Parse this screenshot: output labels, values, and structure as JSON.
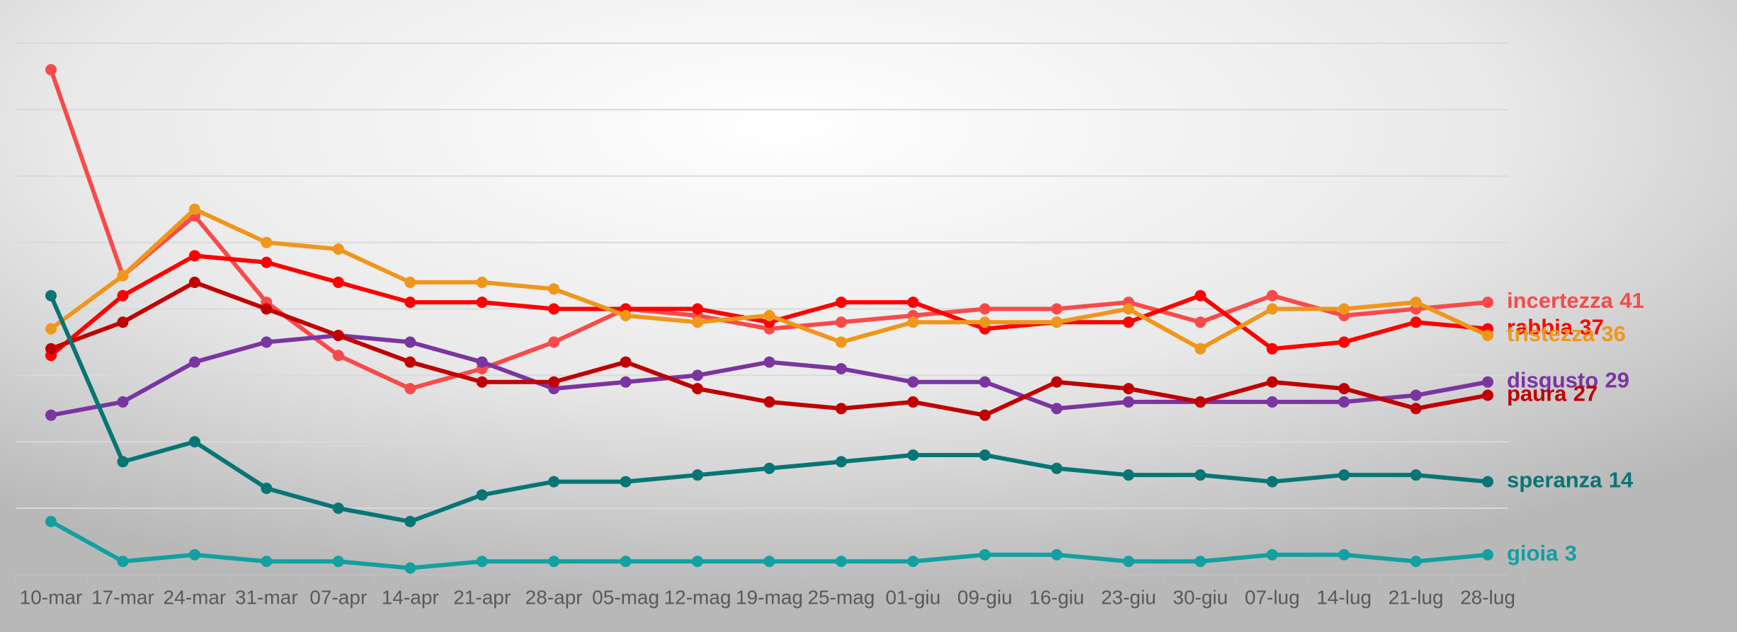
{
  "chart_data": {
    "type": "line",
    "categories": [
      "10-mar",
      "17-mar",
      "24-mar",
      "31-mar",
      "07-apr",
      "14-apr",
      "21-apr",
      "28-apr",
      "05-mag",
      "12-mag",
      "19-mag",
      "25-mag",
      "01-giu",
      "09-giu",
      "16-giu",
      "23-giu",
      "30-giu",
      "07-lug",
      "14-lug",
      "21-lug",
      "28-lug"
    ],
    "series": [
      {
        "name": "incertezza",
        "color": "#f94a4a",
        "values": [
          76,
          45,
          54,
          41,
          33,
          28,
          31,
          35,
          40,
          39,
          37,
          38,
          39,
          40,
          40,
          41,
          38,
          42,
          39,
          40,
          41
        ]
      },
      {
        "name": "rabbia",
        "color": "#ff0000",
        "values": [
          33,
          42,
          48,
          47,
          44,
          41,
          41,
          40,
          40,
          40,
          38,
          41,
          41,
          37,
          38,
          38,
          42,
          34,
          35,
          38,
          37
        ]
      },
      {
        "name": "tristezza",
        "color": "#f0961b",
        "values": [
          37,
          45,
          55,
          50,
          49,
          44,
          44,
          43,
          39,
          38,
          39,
          35,
          38,
          38,
          38,
          40,
          34,
          40,
          40,
          41,
          36
        ]
      },
      {
        "name": "disgusto",
        "color": "#7b35a0",
        "values": [
          24,
          26,
          32,
          35,
          36,
          35,
          32,
          28,
          29,
          30,
          32,
          31,
          29,
          29,
          25,
          26,
          26,
          26,
          26,
          27,
          29
        ]
      },
      {
        "name": "paura",
        "color": "#c00000",
        "values": [
          34,
          38,
          44,
          40,
          36,
          32,
          29,
          29,
          32,
          28,
          26,
          25,
          26,
          24,
          29,
          28,
          26,
          29,
          28,
          25,
          27
        ]
      },
      {
        "name": "speranza",
        "color": "#087575",
        "values": [
          42,
          17,
          20,
          13,
          10,
          8,
          12,
          14,
          14,
          15,
          16,
          17,
          18,
          18,
          16,
          15,
          15,
          14,
          15,
          15,
          14
        ]
      },
      {
        "name": "gioia",
        "color": "#12a0a0",
        "values": [
          8,
          2,
          3,
          2,
          2,
          1,
          2,
          2,
          2,
          2,
          2,
          2,
          2,
          3,
          3,
          2,
          2,
          3,
          3,
          2,
          3
        ]
      }
    ],
    "ylim": [
      0,
      85
    ],
    "yticks": [
      0,
      10,
      20,
      30,
      40,
      50,
      60,
      70,
      80
    ],
    "grid": true
  }
}
